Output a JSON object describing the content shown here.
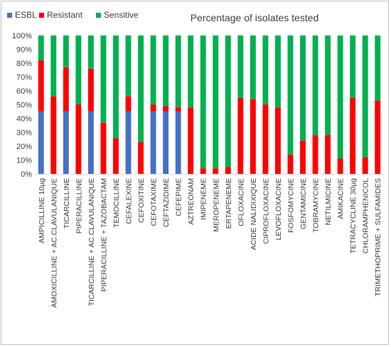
{
  "chart_data": {
    "type": "bar",
    "stacked": true,
    "title": "Percentage of isolates tested",
    "xlabel": "",
    "ylabel": "",
    "ylim": [
      0,
      100
    ],
    "y_tick_suffix": "%",
    "y_ticks": [
      0,
      10,
      20,
      30,
      40,
      50,
      60,
      70,
      80,
      90,
      100
    ],
    "grid": false,
    "legend_position": "top-left",
    "categories": [
      "AMPICILLINE 10µg",
      "AMOXICILLINE + AC.CLAVULANIQUE",
      "TICARCILLINE",
      "PIPERACILLINE",
      "TICARCILLINE + AC.CLAVULANIQUE",
      "PIPERACILLINE + TAZOBACTAM",
      "TEMOCILLINE",
      "CEFALEXINE",
      "CEFOXITINE",
      "CEFOTAXIME",
      "CEFTAZIDIME",
      "CEFEPIME",
      "AZTREONAM",
      "IMIPENEME",
      "MEROPENEME",
      "ERTAPENEME",
      "OFLOXACINE",
      "ACIDE NALIDIXIQUE",
      "CIPROFLOXACINE",
      "LEVOFLOXACINE",
      "FOSFOMYCINE",
      "GENTAMICINE",
      "TOBRAMYCINE",
      "NETILMICINE",
      "AMIKACINE",
      "TETRACYCLINE 30µg",
      "CHLORAMPHENICOL",
      "TRIMETHOPRIME + SULFAMIDES"
    ],
    "series": [
      {
        "name": "ESBL",
        "color": "#4472C4",
        "values": [
          45,
          0,
          45,
          0,
          45,
          0,
          0,
          45,
          0,
          45,
          45,
          45,
          0,
          0,
          0,
          0,
          0,
          0,
          0,
          0,
          0,
          0,
          0,
          0,
          0,
          0,
          0,
          0
        ]
      },
      {
        "name": "Resistant",
        "color": "#FF0000",
        "values": [
          37,
          56,
          32,
          50,
          31,
          37,
          26,
          11,
          23,
          5,
          4,
          3,
          48,
          4,
          4,
          5,
          55,
          54,
          50,
          48,
          14,
          24,
          28,
          28,
          11,
          55,
          12,
          53
        ]
      },
      {
        "name": "Sensitive",
        "color": "#00B050",
        "values": [
          18,
          44,
          23,
          50,
          24,
          63,
          74,
          44,
          77,
          50,
          51,
          52,
          52,
          96,
          96,
          95,
          45,
          46,
          50,
          52,
          86,
          76,
          72,
          72,
          89,
          45,
          88,
          47
        ]
      }
    ]
  }
}
